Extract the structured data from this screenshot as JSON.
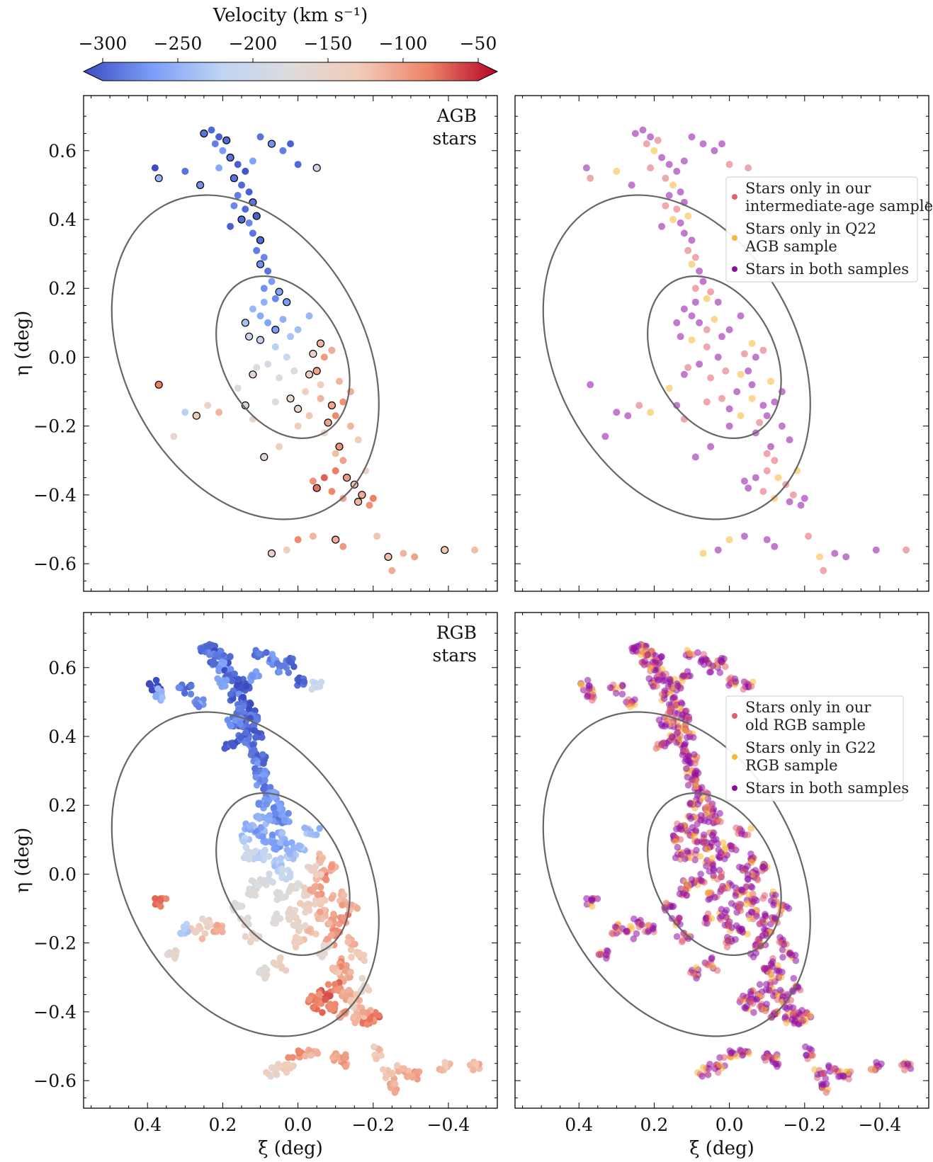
{
  "colorbar": {
    "title": "Velocity (km s⁻¹)",
    "range": [
      -300,
      -50
    ],
    "ticks": [
      -300,
      -250,
      -200,
      -150,
      -100,
      -50
    ],
    "tick_labels": [
      "−300",
      "−250",
      "−200",
      "−150",
      "−100",
      "−50"
    ],
    "colormap_stops": [
      "#3b4cc0",
      "#7b9ff9",
      "#c0d4f5",
      "#dddcdc",
      "#f2cbb7",
      "#ee8468",
      "#b40426"
    ]
  },
  "axes_text": {
    "xlabel": "ξ (deg)",
    "ylabel": "η (deg)",
    "x_ticks": [
      0.4,
      0.2,
      0.0,
      -0.2,
      -0.4
    ],
    "x_tick_labels": [
      "0.4",
      "0.2",
      "0.0",
      "−0.2",
      "−0.4"
    ],
    "y_ticks": [
      0.6,
      0.4,
      0.2,
      0.0,
      -0.2,
      -0.4,
      -0.6
    ],
    "y_tick_labels": [
      "0.6",
      "0.4",
      "0.2",
      "0.0",
      "−0.2",
      "−0.4",
      "−0.6"
    ]
  },
  "panels": {
    "agb_label_line1": "AGB",
    "agb_label_line2": "stars",
    "rgb_label_line1": "RGB",
    "rgb_label_line2": "stars"
  },
  "legend_top": {
    "item1_line1": "Stars only in our",
    "item1_line2": "intermediate-age sample",
    "item2_line1": "Stars only in Q22",
    "item2_line2": "AGB sample",
    "item3": "Stars in both samples",
    "colors": [
      "#e0606e",
      "#f9b733",
      "#8e0ca5"
    ]
  },
  "legend_bottom": {
    "item1_line1": "Stars only in our",
    "item1_line2": "old RGB sample",
    "item2_line1": "Stars only in G22",
    "item2_line2": "RGB sample",
    "item3": "Stars in both samples",
    "colors": [
      "#e0606e",
      "#f9b733",
      "#8e0ca5"
    ]
  },
  "chart_data": [
    {
      "type": "scatter",
      "xlim": [
        0.57,
        -0.53
      ],
      "ylim": [
        -0.68,
        0.76
      ],
      "ellipses": [
        {
          "center": [
            0.14,
            0.0
          ],
          "a": 0.5,
          "b": 0.32,
          "angle_deg": 28,
          "color": "#666666"
        },
        {
          "center": [
            0.04,
            0.0
          ],
          "a": 0.25,
          "b": 0.16,
          "angle_deg": 28,
          "color": "#666666"
        }
      ],
      "points": [
        [
          0.25,
          0.65,
          -280
        ],
        [
          0.23,
          0.66,
          -285
        ],
        [
          0.21,
          0.64,
          -290
        ],
        [
          0.19,
          0.63,
          -285
        ],
        [
          0.22,
          0.62,
          -275
        ],
        [
          0.2,
          0.6,
          -260
        ],
        [
          0.18,
          0.58,
          -280
        ],
        [
          0.16,
          0.56,
          -290
        ],
        [
          0.14,
          0.54,
          -295
        ],
        [
          0.17,
          0.52,
          -280
        ],
        [
          0.15,
          0.5,
          -285
        ],
        [
          0.13,
          0.48,
          -290
        ],
        [
          0.12,
          0.45,
          -280
        ],
        [
          0.16,
          0.47,
          -275
        ],
        [
          0.14,
          0.43,
          -285
        ],
        [
          0.11,
          0.41,
          -290
        ],
        [
          0.13,
          0.39,
          -270
        ],
        [
          0.12,
          0.36,
          -280
        ],
        [
          0.1,
          0.34,
          -285
        ],
        [
          0.11,
          0.31,
          -275
        ],
        [
          0.09,
          0.29,
          -270
        ],
        [
          0.1,
          0.27,
          -265
        ],
        [
          0.08,
          0.25,
          -280
        ],
        [
          0.07,
          0.22,
          -260
        ],
        [
          0.05,
          0.19,
          -255
        ],
        [
          0.09,
          0.2,
          -265
        ],
        [
          0.06,
          0.17,
          -270
        ],
        [
          0.03,
          0.16,
          -260
        ],
        [
          0.1,
          0.12,
          -250
        ],
        [
          0.08,
          0.1,
          -255
        ],
        [
          0.06,
          0.08,
          -260
        ],
        [
          0.04,
          0.11,
          -245
        ],
        [
          0.12,
          0.14,
          -240
        ],
        [
          0.14,
          0.1,
          -230
        ],
        [
          0.02,
          0.06,
          -230
        ],
        [
          0.06,
          0.03,
          -220
        ],
        [
          0.1,
          0.05,
          -215
        ],
        [
          0.03,
          0.0,
          -200
        ],
        [
          0.08,
          -0.02,
          -190
        ],
        [
          0.12,
          -0.05,
          -160
        ],
        [
          0.05,
          -0.06,
          -175
        ],
        [
          0.01,
          -0.04,
          -170
        ],
        [
          -0.03,
          -0.05,
          -150
        ],
        [
          -0.06,
          -0.08,
          -140
        ],
        [
          -0.02,
          -0.1,
          -145
        ],
        [
          0.02,
          -0.12,
          -160
        ],
        [
          0.06,
          -0.13,
          -170
        ],
        [
          -0.06,
          -0.12,
          -120
        ],
        [
          -0.09,
          -0.14,
          -110
        ],
        [
          -0.12,
          -0.13,
          -100
        ],
        [
          -0.1,
          -0.17,
          -95
        ],
        [
          -0.08,
          -0.19,
          -110
        ],
        [
          -0.03,
          -0.17,
          -130
        ],
        [
          0.0,
          -0.2,
          -140
        ],
        [
          -0.05,
          -0.04,
          -110
        ],
        [
          -0.07,
          0.0,
          -105
        ],
        [
          -0.09,
          0.02,
          -115
        ],
        [
          -0.06,
          0.04,
          -120
        ],
        [
          -0.14,
          -0.2,
          -120
        ],
        [
          -0.16,
          -0.24,
          -140
        ],
        [
          -0.11,
          -0.26,
          -100
        ],
        [
          -0.12,
          -0.3,
          -110
        ],
        [
          -0.1,
          -0.33,
          -90
        ],
        [
          -0.13,
          -0.35,
          -105
        ],
        [
          -0.07,
          -0.35,
          -80
        ],
        [
          -0.04,
          -0.36,
          -100
        ],
        [
          -0.05,
          -0.38,
          -85
        ],
        [
          -0.09,
          -0.39,
          -95
        ],
        [
          -0.12,
          -0.41,
          -110
        ],
        [
          -0.16,
          -0.42,
          -120
        ],
        [
          -0.19,
          -0.43,
          -100
        ],
        [
          -0.2,
          -0.41,
          -90
        ],
        [
          -0.17,
          -0.4,
          -115
        ],
        [
          0.0,
          -0.53,
          -95
        ],
        [
          -0.04,
          -0.52,
          -120
        ],
        [
          -0.1,
          -0.53,
          -115
        ],
        [
          -0.12,
          -0.55,
          -105
        ],
        [
          -0.21,
          -0.52,
          -130
        ],
        [
          -0.24,
          -0.58,
          -125
        ],
        [
          -0.28,
          -0.57,
          -120
        ],
        [
          -0.31,
          -0.58,
          -110
        ],
        [
          -0.39,
          -0.56,
          -130
        ],
        [
          -0.47,
          -0.56,
          -125
        ],
        [
          -0.25,
          -0.62,
          -115
        ],
        [
          0.07,
          -0.57,
          -150
        ],
        [
          0.03,
          -0.56,
          -140
        ],
        [
          0.33,
          -0.23,
          -160
        ],
        [
          0.27,
          -0.17,
          -135
        ],
        [
          0.24,
          -0.14,
          -150
        ],
        [
          0.21,
          -0.16,
          -120
        ],
        [
          0.37,
          -0.08,
          -90
        ],
        [
          0.3,
          -0.16,
          -220
        ],
        [
          0.38,
          0.55,
          -300
        ],
        [
          0.37,
          0.52,
          -240
        ],
        [
          0.3,
          0.54,
          -280
        ],
        [
          0.1,
          0.64,
          -280
        ],
        [
          0.07,
          0.62,
          -265
        ],
        [
          0.04,
          0.6,
          -275
        ],
        [
          0.0,
          0.56,
          -285
        ],
        [
          -0.05,
          0.55,
          -200
        ],
        [
          0.02,
          0.62,
          -290
        ],
        [
          0.12,
          0.57,
          -255
        ],
        [
          0.26,
          0.5,
          -265
        ],
        [
          0.21,
          0.55,
          -250
        ],
        [
          0.17,
          0.44,
          -270
        ],
        [
          0.15,
          0.4,
          -285
        ],
        [
          0.18,
          0.38,
          -290
        ],
        [
          0.09,
          0.16,
          -245
        ],
        [
          0.13,
          0.06,
          -200
        ],
        [
          0.11,
          -0.03,
          -180
        ],
        [
          0.16,
          -0.09,
          -175
        ],
        [
          0.14,
          -0.14,
          -165
        ],
        [
          0.0,
          0.08,
          -235
        ],
        [
          -0.03,
          0.12,
          -240
        ],
        [
          -0.04,
          0.01,
          -150
        ],
        [
          -0.11,
          -0.07,
          -120
        ],
        [
          -0.14,
          -0.1,
          -115
        ],
        [
          0.0,
          -0.15,
          -155
        ],
        [
          -0.07,
          -0.22,
          -160
        ],
        [
          -0.1,
          -0.28,
          -125
        ],
        [
          -0.15,
          -0.37,
          -130
        ],
        [
          -0.18,
          -0.33,
          -155
        ],
        [
          0.05,
          -0.26,
          -145
        ],
        [
          0.09,
          -0.29,
          -165
        ],
        [
          0.12,
          -0.18,
          -155
        ]
      ]
    }
  ]
}
